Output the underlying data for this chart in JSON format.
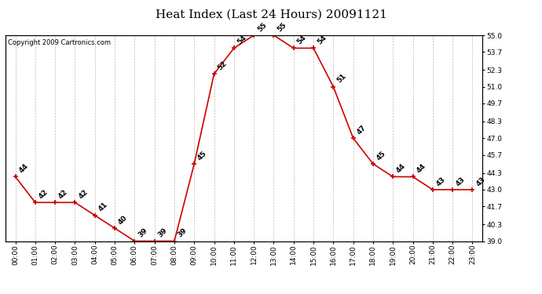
{
  "title": "Heat Index (Last 24 Hours) 20091121",
  "copyright": "Copyright 2009 Cartronics.com",
  "hours": [
    "00:00",
    "01:00",
    "02:00",
    "03:00",
    "04:00",
    "05:00",
    "06:00",
    "07:00",
    "08:00",
    "09:00",
    "10:00",
    "11:00",
    "12:00",
    "13:00",
    "14:00",
    "15:00",
    "16:00",
    "17:00",
    "18:00",
    "19:00",
    "20:00",
    "21:00",
    "22:00",
    "23:00"
  ],
  "values": [
    44,
    42,
    42,
    42,
    41,
    40,
    39,
    39,
    39,
    45,
    52,
    54,
    55,
    55,
    54,
    54,
    51,
    47,
    45,
    44,
    44,
    43,
    43,
    43
  ],
  "ylim": [
    39.0,
    55.0
  ],
  "yticks": [
    39.0,
    40.3,
    41.7,
    43.0,
    44.3,
    45.7,
    47.0,
    48.3,
    49.7,
    51.0,
    52.3,
    53.7,
    55.0
  ],
  "line_color": "#cc0000",
  "marker_color": "#cc0000",
  "bg_color": "#ffffff",
  "plot_bg_color": "#ffffff",
  "grid_color": "#bbbbbb",
  "title_fontsize": 11,
  "tick_fontsize": 6.5,
  "annotation_fontsize": 6.5,
  "copyright_fontsize": 6
}
